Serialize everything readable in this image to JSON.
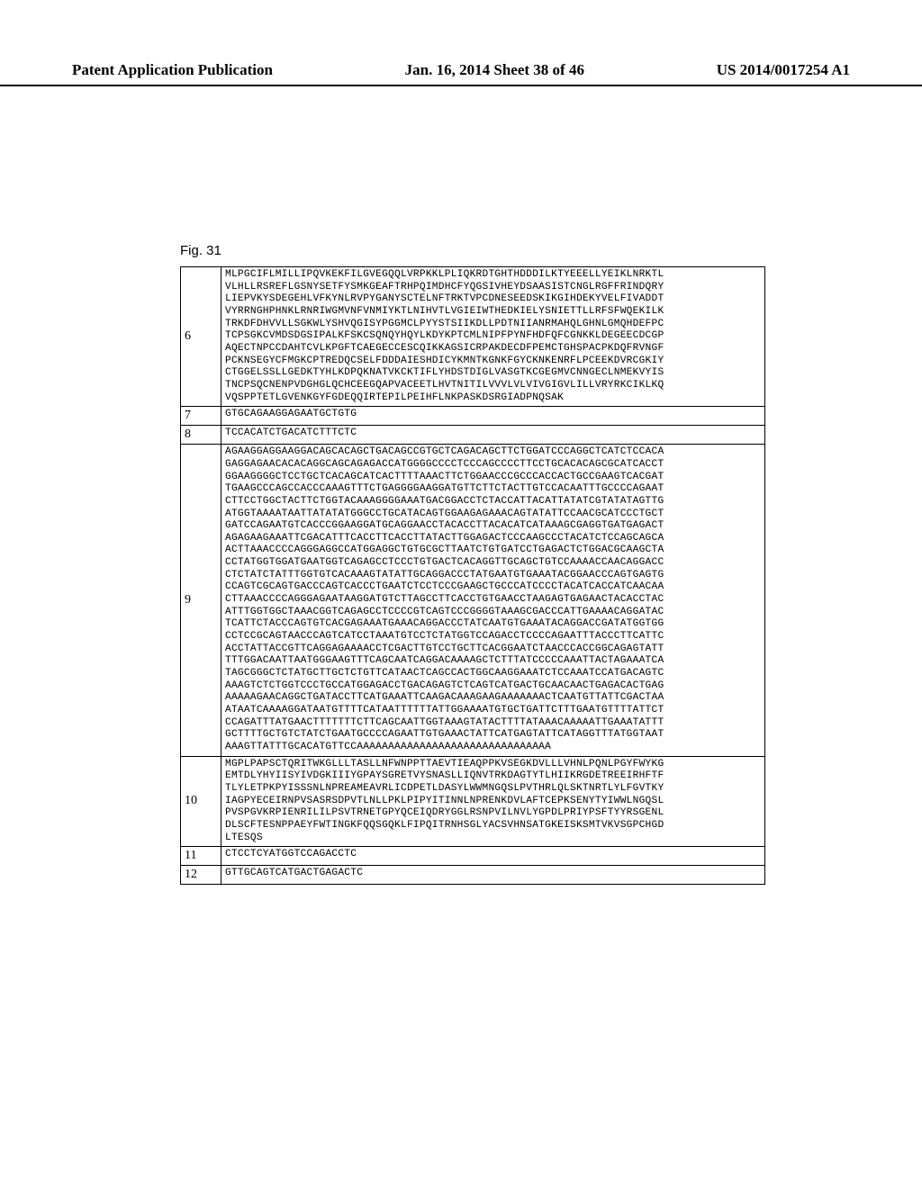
{
  "header": {
    "left": "Patent Application Publication",
    "center": "Jan. 16, 2014  Sheet 38 of 46",
    "right": "US 2014/0017254 A1"
  },
  "figure": {
    "label": "Fig. 31"
  },
  "rows": [
    {
      "id": "6",
      "lines": [
        "MLPGCIFLMILLIPQVKEKFILGVEGQQLVRPKKLPLIQKRDTGHTHDDDILKTYEEELLYEIKLNRKTL",
        "VLHLLRSREFLGSNYSETFYSMKGEAFTRHPQIMDHCFYQGSIVHEYDSAASISTCNGLRGFFRINDQRY",
        "LIEPVKYSDEGEHLVFKYNLRVPYGANYSCTELNFTRKTVPCDNESEEDSKIKGIHDEKYVELFIVADDT",
        "VYRRNGHPHNKLRNRIWGMVNFVNMIYKTLNIHVTLVGIEIWTHEDKIELYSNIETTLLRFSFWQEKILK",
        "TRKDFDHVVLLSGKWLYSHVQGISYPGGMCLPYYSTSIIKDLLPDTNIIANRMAHQLGHNLGMQHDEFPC",
        "TCPSGKCVMDSDGSIPALKFSKCSQNQYHQYLKDYKPTCMLNIPFPYNFHDFQFCGNKKLDEGEECDCGP",
        "AQECTNPCCDAHTCVLKPGFTCAEGECCESCQIKKAGSICRPAKDECDFPEMCTGHSPACPKDQFRVNGF",
        "PCKNSEGYCFMGKCPTREDQCSELFDDDAIESHDICYKMNTKGNKFGYCKNKENRFLPCEEKDVRCGKIY",
        "CTGGELSSLLGEDKTYHLKDPQKNATVKCKTIFLYHDSTDIGLVASGTKCGEGMVCNNGECLNMEKVYIS",
        "TNCPSQCNENPVDGHGLQCHCEEGQAPVACEETLHVTNITILVVVLVLVIVGIGVLILLVRYRKCIKLKQ",
        "VQSPPTETLGVENKGYFGDEQQIRTEPILPEIHFLNKPASKDSRGIADPNQSAK"
      ]
    },
    {
      "id": "7",
      "lines": [
        "GTGCAGAAGGAGAATGCTGTG"
      ]
    },
    {
      "id": "8",
      "lines": [
        "TCCACATCTGACATCTTTCTC"
      ]
    },
    {
      "id": "9",
      "lines": [
        "AGAAGGAGGAAGGACAGCACAGCTGACAGCCGTGCTCAGACAGCTTCTGGATCCCAGGCTCATCTCCACA",
        "GAGGAGAACACACAGGCAGCAGAGACCATGGGGCCCCTCCCAGCCCCTTCCTGCACACAGCGCATCACCT",
        "GGAAGGGGCTCCTGCTCACAGCATCACTTTTAAACTTCTGGAACCCGCCCACCACTGCCGAAGTCACGAT",
        "TGAAGCCCAGCCACCCAAAGTTTCTGAGGGGAAGGATGTTCTTCTACTTGTCCACAATTTGCCCCAGAAT",
        "CTTCCTGGCTACTTCTGGTACAAAGGGGAAATGACGGACCTCTACCATTACATTATATCGTATATAGTTG",
        "ATGGTAAAATAATTATATATGGGCCTGCATACAGTGGAAGAGAAACAGTATATTCCAACGCATCCCTGCT",
        "GATCCAGAATGTCACCCGGAAGGATGCAGGAACCTACACCTTACACATCATAAAGCGAGGTGATGAGACT",
        "AGAGAAGAAATTCGACATTTCACCTTCACCTTATACTTGGAGACTCCCAAGCCCTACATCTCCAGCAGCA",
        "ACTTAAACCCCAGGGAGGCCATGGAGGCTGTGCGCTTAATCTGTGATCCTGAGACTCTGGACGCAAGCTA",
        "CCTATGGTGGATGAATGGTCAGAGCCTCCCTGTGACTCACAGGTTGCAGCTGTCCAAAACCAACAGGACC",
        "CTCTATCTATTTGGTGTCACAAAGTATATTGCAGGACCCTATGAATGTGAAATACGGAACCCAGTGAGTG",
        "CCAGTCGCAGTGACCCAGTCACCCTGAATCTCCTCCCGAAGCTGCCCATCCCCTACATCACCATCAACAA",
        "CTTAAACCCCAGGGAGAATAAGGATGTCTTAGCCTTCACCTGTGAACCTAAGAGTGAGAACTACACCTAC",
        "ATTTGGTGGCTAAACGGTCAGAGCCTCCCCGTCAGTCCCGGGGTAAAGCGACCCATTGAAAACAGGATAC",
        "TCATTCTACCCAGTGTCACGAGAAATGAAACAGGACCCTATCAATGTGAAATACAGGACCGATATGGTGG",
        "CCTCCGCAGTAACCCAGTCATCCTAAATGTCCTCTATGGTCCAGACCTCCCCAGAATTTACCCTTCATTC",
        "ACCTATTACCGTTCAGGAGAAAACCTCGACTTGTCCTGCTTCACGGAATCTAACCCACCGGCAGAGTATT",
        "TTTGGACAATTAATGGGAAGTTTCAGCAATCAGGACAAAAGCTCTTTATCCCCCAAATTACTAGAAATCA",
        "TAGCGGGCTCTATGCTTGCTCTGTTCATAACTCAGCCACTGGCAAGGAAATCTCCAAATCCATGACAGTC",
        "AAAGTCTCTGGTCCCTGCCATGGAGACCTGACAGAGTCTCAGTCATGACTGCAACAACTGAGACACTGAG",
        "AAAAAGAACAGGCTGATACCTTCATGAAATTCAAGACAAAGAAGAAAAAAACTCAATGTTATTCGACTAA",
        "ATAATCAAAAGGATAATGTTTTCATAATTTTTTATTGGAAAATGTGCTGATTCTTTGAATGTTTTATTCT",
        "CCAGATTTATGAACTTTTTTTCTTCAGCAATTGGTAAAGTATACTTTTATAAACAAAAATTGAAATATTT",
        "GCTTTTGCTGTCTATCTGAATGCCCCAGAATTGTGAAACTATTCATGAGTATTCATAGGTTTATGGTAAT",
        "AAAGTTATTTGCACATGTTCCAAAAAAAAAAAAAAAAAAAAAAAAAAAAAAA"
      ]
    },
    {
      "id": "10",
      "lines": [
        "MGPLPAPSCTQRITWKGLLLTASLLNFWNPPTTAEVTIEAQPPKVSEGKDVLLLVHNLPQNLPGYFWYKG",
        "EMTDLYHYIISYIVDGKIIIYGPAYSGRETVYSNASLLIQNVTRKDAGTYTLHIIKRGDETREEIRHFTF",
        "TLYLETPKPYISSSNLNPREAMEAVRLICDPETLDASYLWWMNGQSLPVTHRLQLSKTNRTLYLFGVTKY",
        "IAGPYECEIRNPVSASRSDPVTLNLLPKLPIPYITINNLNPRENKDVLAFTCEPKSENYTYIWWLNGQSL",
        "PVSPGVKRPIENRILILPSVTRNETGPYQCEIQDRYGGLRSNPVILNVLYGPDLPRIYPSFTYYRSGENL",
        "DLSCFTESNPPAEYFWTINGKFQQSGQKLFIPQITRNHSGLYACSVHNSATGKEISKSMTVKVSGPCHGD",
        "LTESQS"
      ]
    },
    {
      "id": "11",
      "lines": [
        "CTCCTCYATGGTCCAGACCTC"
      ]
    },
    {
      "id": "12",
      "lines": [
        "GTTGCAGTCATGACTGAGACTC"
      ]
    }
  ]
}
